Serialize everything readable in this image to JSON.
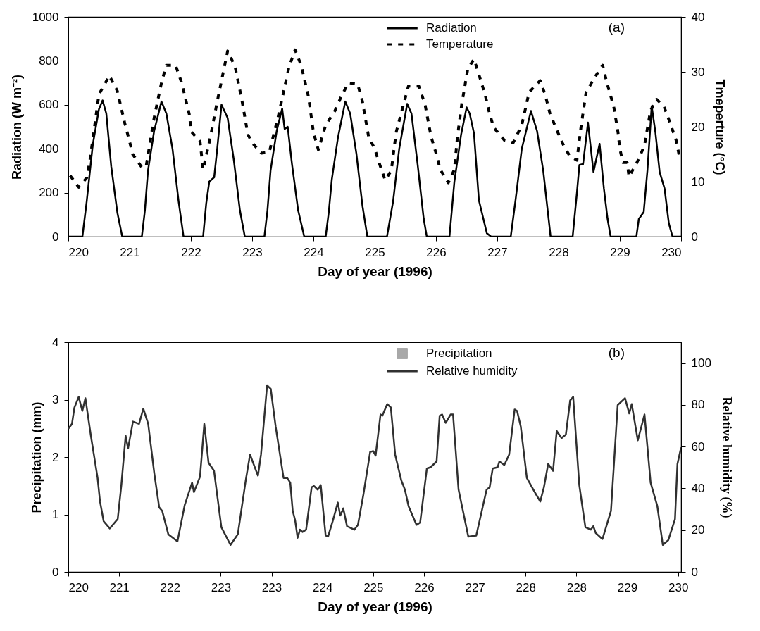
{
  "chart_data": [
    {
      "type": "line",
      "xlabel": "Day of year (1996)",
      "ylabel": "Radiation (W m⁻²)",
      "y2label": "Tmeperture (°C)",
      "annotations": [
        "(a)"
      ],
      "xlim": [
        220,
        230
      ],
      "xticks": [
        220,
        221,
        222,
        223,
        224,
        225,
        226,
        227,
        228,
        229,
        230
      ],
      "ylim": [
        0,
        1000
      ],
      "yticks": [
        0,
        200,
        400,
        600,
        800,
        1000
      ],
      "y2lim": [
        0,
        40
      ],
      "y2ticks": [
        0,
        10,
        20,
        30,
        40
      ],
      "legend": "top right",
      "grid": false,
      "series": [
        {
          "name": "Radiation",
          "color": "#000000",
          "line_style": "solid",
          "x": [
            220,
            220.23,
            220.3,
            220.4,
            220.5,
            220.56,
            220.62,
            220.7,
            220.8,
            220.88,
            221.2,
            221.25,
            221.3,
            221.4,
            221.52,
            221.6,
            221.7,
            221.8,
            221.88,
            222.2,
            222.25,
            222.3,
            222.38,
            222.43,
            222.5,
            222.6,
            222.7,
            222.8,
            222.88,
            223.2,
            223.25,
            223.3,
            223.4,
            223.49,
            223.53,
            223.58,
            223.65,
            223.75,
            223.85,
            224.2,
            224.25,
            224.3,
            224.4,
            224.52,
            224.6,
            224.7,
            224.8,
            224.88,
            225.2,
            225.3,
            225.4,
            225.53,
            225.6,
            225.7,
            225.8,
            225.85,
            226.22,
            226.3,
            226.41,
            226.5,
            226.55,
            226.62,
            226.7,
            226.83,
            226.9,
            227.22,
            227.3,
            227.4,
            227.55,
            227.65,
            227.75,
            227.87,
            228.23,
            228.3,
            228.34,
            228.4,
            228.48,
            228.57,
            228.67,
            228.74,
            228.8,
            228.85,
            229.27,
            229.31,
            229.39,
            229.45,
            229.52,
            229.58,
            229.65,
            229.73,
            229.8,
            229.86,
            230
          ],
          "values": [
            0,
            0,
            160,
            420,
            580,
            620,
            560,
            320,
            110,
            0,
            0,
            120,
            300,
            480,
            615,
            560,
            400,
            160,
            0,
            0,
            150,
            250,
            270,
            400,
            600,
            540,
            350,
            120,
            0,
            0,
            120,
            300,
            480,
            583,
            490,
            500,
            330,
            120,
            0,
            0,
            110,
            260,
            450,
            615,
            560,
            380,
            140,
            0,
            0,
            160,
            400,
            604,
            560,
            330,
            80,
            0,
            0,
            250,
            465,
            588,
            560,
            470,
            166,
            15,
            0,
            0,
            170,
            400,
            572,
            480,
            300,
            0,
            0,
            200,
            326,
            330,
            519,
            294,
            422,
            219,
            80,
            0,
            0,
            80,
            112,
            300,
            594,
            476,
            294,
            219,
            60,
            0,
            0
          ]
        },
        {
          "name": "Temperature",
          "color": "#000000",
          "line_style": "dashed",
          "axis": "y2",
          "x": [
            220.03,
            220.17,
            220.3,
            220.35,
            220.5,
            220.67,
            220.8,
            220.92,
            221.0,
            221.05,
            221.2,
            221.27,
            221.4,
            221.52,
            221.6,
            221.75,
            221.85,
            221.98,
            222.0,
            222.15,
            222.2,
            222.32,
            222.43,
            222.6,
            222.72,
            222.83,
            222.93,
            223.0,
            223.15,
            223.28,
            223.42,
            223.6,
            223.7,
            223.8,
            223.92,
            224.0,
            224.08,
            224.2,
            224.35,
            224.45,
            224.57,
            224.72,
            224.8,
            224.9,
            225.0,
            225.07,
            225.17,
            225.27,
            225.35,
            225.55,
            225.72,
            225.82,
            225.92,
            226.0,
            226.07,
            226.2,
            226.3,
            226.35,
            226.42,
            226.52,
            226.62,
            226.72,
            226.8,
            226.87,
            226.94,
            227.12,
            227.26,
            227.4,
            227.52,
            227.7,
            227.78,
            227.86,
            227.96,
            228.07,
            228.18,
            228.3,
            228.37,
            228.45,
            228.58,
            228.72,
            228.78,
            228.9,
            228.97,
            229.0,
            229.05,
            229.12,
            229.15,
            229.28,
            229.4,
            229.5,
            229.6,
            229.72,
            229.82,
            229.92,
            229.97
          ],
          "values": [
            11.1,
            9.0,
            10.7,
            13.7,
            25.9,
            29.3,
            26.5,
            20.7,
            17.3,
            15.0,
            12.6,
            12.8,
            21.6,
            28.0,
            31.2,
            31.2,
            28.0,
            22.0,
            19.2,
            17.3,
            12.2,
            18.2,
            24.6,
            33.8,
            31.0,
            25.0,
            18.6,
            17.1,
            15.2,
            15.4,
            21.6,
            30.8,
            34.0,
            31.2,
            25.4,
            19.0,
            15.8,
            20.3,
            22.9,
            25.4,
            28.0,
            27.8,
            24.6,
            18.2,
            16.0,
            13.5,
            10.3,
            12.0,
            19.0,
            27.4,
            27.4,
            24.1,
            18.2,
            15.2,
            12.2,
            9.8,
            12.2,
            18.2,
            24.1,
            30.6,
            32.3,
            28.8,
            25.9,
            22.6,
            19.9,
            17.5,
            17.1,
            20.3,
            26.3,
            28.4,
            25.9,
            22.4,
            19.7,
            16.9,
            14.7,
            13.9,
            20.3,
            26.3,
            28.8,
            31.2,
            28.4,
            23.7,
            19.0,
            16.0,
            13.5,
            13.5,
            10.9,
            13.5,
            16.5,
            22.9,
            25.0,
            23.7,
            20.7,
            17.5,
            14.7
          ]
        }
      ]
    },
    {
      "type": "line",
      "xlabel": "Day of year (1996)",
      "ylabel": "Precipitation (mm)",
      "y2label": "Relative humidity (%)",
      "annotations": [
        "(b)"
      ],
      "xlim": [
        220,
        230.05
      ],
      "xticks": [
        220,
        {
          "value": 220.833,
          "label": "221"
        },
        {
          "value": 221.667,
          "label": "222"
        },
        {
          "value": 222.5,
          "label": "223"
        },
        {
          "value": 223.333,
          "label": "223"
        },
        {
          "value": 224.167,
          "label": "224"
        },
        {
          "value": 225,
          "label": "225"
        },
        {
          "value": 225.833,
          "label": "226"
        },
        {
          "value": 226.667,
          "label": "227"
        },
        {
          "value": 227.5,
          "label": "228"
        },
        {
          "value": 228.333,
          "label": "228"
        },
        {
          "value": 229.167,
          "label": "229"
        },
        230
      ],
      "ylim": [
        0,
        4
      ],
      "yticks": [
        0,
        1,
        2,
        3,
        4
      ],
      "y2lim": [
        0,
        110
      ],
      "y2ticks": [
        0,
        20,
        40,
        60,
        80,
        100
      ],
      "legend": "top right",
      "grid": false,
      "series": [
        {
          "name": "Precipitation",
          "type": "bar",
          "color": "#a8a8a8"
        },
        {
          "name": "Relative humidity",
          "color": "#303030",
          "line_style": "solid",
          "axis": "y2",
          "x": [
            220.0,
            220.06,
            220.1,
            220.17,
            220.23,
            220.28,
            220.37,
            220.48,
            220.52,
            220.58,
            220.68,
            220.81,
            220.87,
            220.94,
            220.98,
            221.06,
            221.16,
            221.23,
            221.31,
            221.41,
            221.49,
            221.54,
            221.64,
            221.79,
            221.91,
            222.03,
            222.06,
            222.16,
            222.23,
            222.3,
            222.39,
            222.51,
            222.66,
            222.78,
            222.91,
            222.98,
            223.11,
            223.16,
            223.26,
            223.32,
            223.4,
            223.53,
            223.59,
            223.64,
            223.68,
            223.72,
            223.76,
            223.8,
            223.84,
            223.9,
            223.99,
            224.03,
            224.09,
            224.14,
            224.22,
            224.26,
            224.34,
            224.42,
            224.46,
            224.51,
            224.57,
            224.69,
            224.75,
            224.84,
            224.95,
            225.0,
            225.04,
            225.12,
            225.15,
            225.23,
            225.29,
            225.36,
            225.46,
            225.52,
            225.58,
            225.71,
            225.77,
            225.88,
            225.94,
            226.04,
            226.09,
            226.13,
            226.19,
            226.27,
            226.31,
            226.4,
            226.56,
            226.69,
            226.86,
            226.91,
            226.96,
            227.04,
            227.07,
            227.15,
            227.23,
            227.32,
            227.36,
            227.42,
            227.52,
            227.65,
            227.74,
            227.8,
            227.87,
            227.95,
            228.01,
            228.09,
            228.16,
            228.23,
            228.28,
            228.38,
            228.48,
            228.57,
            228.61,
            228.65,
            228.76,
            228.9,
            229.01,
            229.13,
            229.2,
            229.24,
            229.34,
            229.45,
            229.55,
            229.66,
            229.75,
            229.84,
            229.95,
            229.99,
            230.05
          ],
          "values": [
            68.6,
            70.9,
            78.7,
            83.8,
            77.1,
            83.2,
            65.2,
            45.0,
            33.7,
            24.2,
            20.8,
            25.3,
            41.6,
            65.2,
            59.1,
            72.0,
            70.9,
            78.2,
            70.9,
            47.2,
            30.9,
            29.2,
            18.0,
            14.6,
            32.1,
            42.7,
            38.2,
            45.6,
            70.9,
            52.3,
            48.4,
            21.4,
            12.9,
            18.0,
            43.9,
            56.2,
            46.1,
            56.2,
            89.4,
            87.7,
            69.7,
            45.0,
            45.0,
            42.7,
            29.2,
            24.7,
            16.3,
            20.2,
            19.1,
            20.2,
            40.5,
            41.1,
            39.4,
            41.6,
            17.4,
            16.9,
            24.7,
            33.2,
            27.0,
            30.4,
            21.9,
            20.2,
            22.5,
            37.1,
            57.4,
            57.9,
            55.7,
            75.4,
            74.8,
            80.4,
            78.7,
            56.2,
            43.9,
            39.4,
            31.5,
            22.5,
            23.6,
            49.5,
            50.1,
            52.9,
            74.8,
            75.4,
            71.4,
            75.4,
            75.4,
            39.4,
            16.9,
            17.4,
            39.4,
            40.5,
            49.5,
            50.1,
            52.9,
            51.2,
            56.2,
            77.8,
            77.1,
            69.7,
            45.0,
            38.2,
            33.7,
            40.5,
            51.7,
            48.4,
            67.5,
            64.1,
            65.8,
            82.1,
            83.8,
            41.6,
            21.4,
            20.2,
            21.9,
            18.6,
            15.7,
            29.2,
            79.9,
            83.2,
            75.9,
            80.4,
            63.0,
            75.4,
            42.7,
            31.5,
            12.9,
            15.2,
            25.3,
            51.7,
            59.6
          ]
        }
      ]
    }
  ]
}
